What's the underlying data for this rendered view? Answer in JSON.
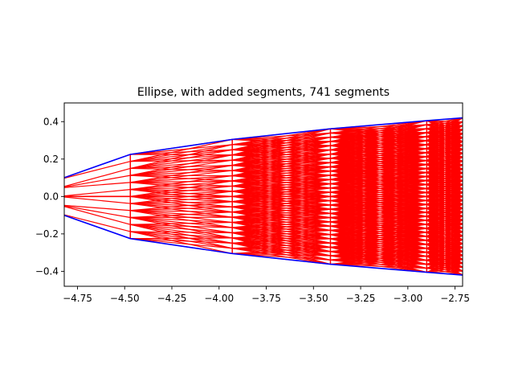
{
  "chart_data": {
    "type": "line",
    "title": "Ellipse, with added segments, 741 segments",
    "xlabel": "",
    "ylabel": "",
    "xlim": [
      -4.82,
      -2.71
    ],
    "ylim": [
      -0.48,
      0.5
    ],
    "xticks": [
      -4.75,
      -4.5,
      -4.25,
      -4.0,
      -3.75,
      -3.5,
      -3.25,
      -3.0,
      -2.75
    ],
    "xtick_labels": [
      "−4.75",
      "−4.50",
      "−4.25",
      "−4.00",
      "−3.75",
      "−3.50",
      "−3.25",
      "−3.00",
      "−2.75"
    ],
    "yticks": [
      0.4,
      0.2,
      0.0,
      -0.2,
      -0.4
    ],
    "ytick_labels": [
      "0.4",
      "0.2",
      "0.0",
      "−0.2",
      "−0.4"
    ],
    "grid": false,
    "series": [
      {
        "color": "#0000ff",
        "x": [
          -4.85,
          -4.47,
          -3.93,
          -3.41,
          -2.9,
          -2.71
        ],
        "y": [
          0.09,
          0.225,
          0.305,
          0.362,
          0.405,
          0.42
        ]
      },
      {
        "color": "#0000ff",
        "x": [
          -4.85,
          -4.47,
          -3.93,
          -3.41,
          -2.9,
          -2.71
        ],
        "y": [
          -0.09,
          -0.225,
          -0.305,
          -0.362,
          -0.405,
          -0.42
        ]
      },
      {
        "color": "#ff0000",
        "x": [
          -4.85,
          -4.47,
          -3.93,
          -3.41,
          -2.9,
          -2.71
        ],
        "y": [
          0.0,
          0.0,
          0.0,
          0.0,
          0.0,
          0.0
        ]
      }
    ],
    "segment_color": "#ff0000",
    "segment_columns_x": [
      -4.85,
      -4.47,
      -3.93,
      -3.41,
      -2.9,
      -2.71
    ]
  }
}
